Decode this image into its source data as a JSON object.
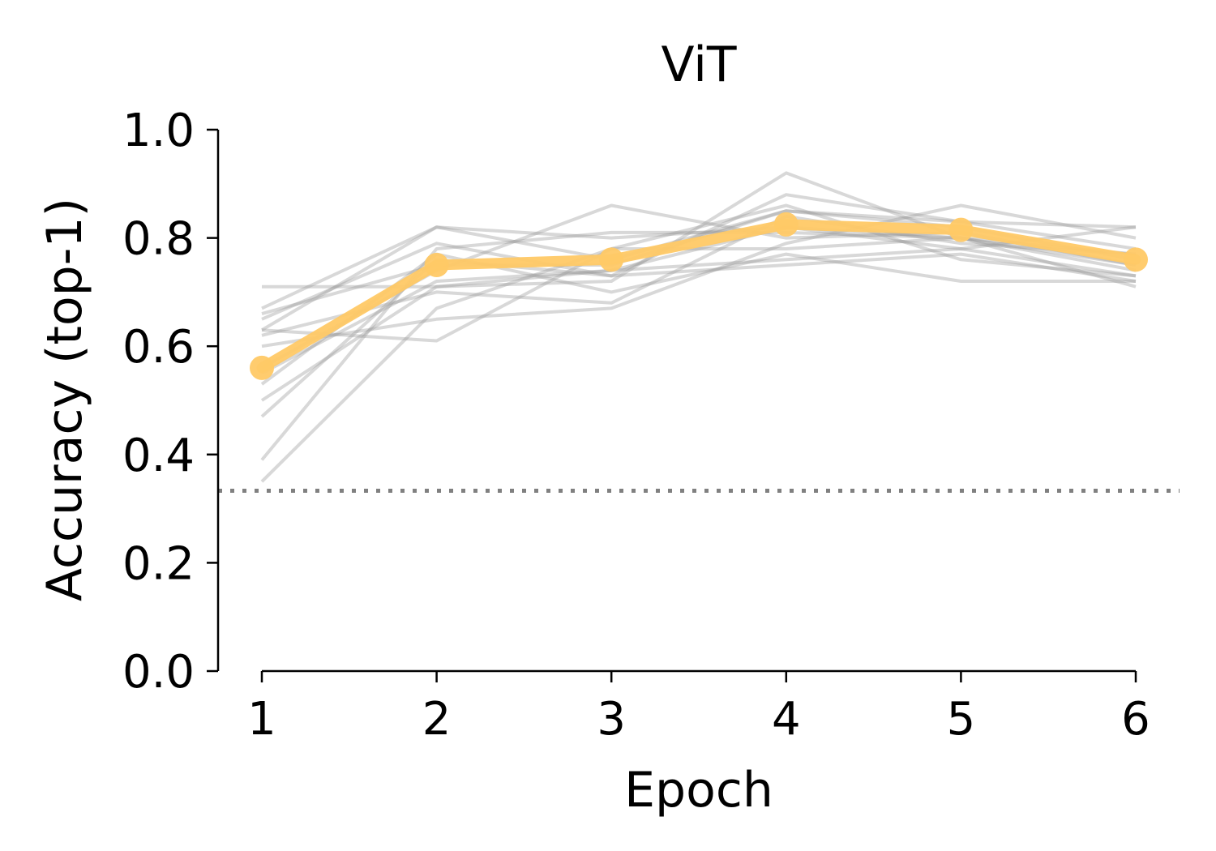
{
  "chart_data": {
    "type": "line",
    "title": "ViT",
    "xlabel": "Epoch",
    "ylabel": "Accuracy (top-1)",
    "x": [
      1,
      2,
      3,
      4,
      5,
      6
    ],
    "xlim": [
      0.75,
      6.25
    ],
    "ylim": [
      0,
      1
    ],
    "xticks": [
      "1",
      "2",
      "3",
      "4",
      "5",
      "6"
    ],
    "yticks": [
      "0.0",
      "0.2",
      "0.4",
      "0.6",
      "0.8",
      "1.0"
    ],
    "grid": false,
    "legend": "none",
    "reference_line": {
      "y": 0.333,
      "style": "dotted",
      "color": "#808080"
    },
    "highlight_series": {
      "color": "#ffc966",
      "values": [
        0.56,
        0.75,
        0.76,
        0.825,
        0.815,
        0.76
      ]
    },
    "background_series_color": "#999999",
    "background_series": [
      {
        "values": [
          0.71,
          0.71,
          0.74,
          0.76,
          0.78,
          0.73
        ]
      },
      {
        "values": [
          0.67,
          0.82,
          0.8,
          0.82,
          0.8,
          0.77
        ]
      },
      {
        "values": [
          0.66,
          0.75,
          0.75,
          0.85,
          0.83,
          0.82
        ]
      },
      {
        "values": [
          0.65,
          0.79,
          0.73,
          0.88,
          0.83,
          0.78
        ]
      },
      {
        "values": [
          0.63,
          0.82,
          0.76,
          0.85,
          0.82,
          0.76
        ]
      },
      {
        "values": [
          0.63,
          0.61,
          0.78,
          0.78,
          0.8,
          0.74
        ]
      },
      {
        "values": [
          0.6,
          0.65,
          0.67,
          0.79,
          0.86,
          0.8
        ]
      },
      {
        "values": [
          0.56,
          0.74,
          0.86,
          0.8,
          0.81,
          0.75
        ]
      },
      {
        "values": [
          0.55,
          0.72,
          0.74,
          0.82,
          0.78,
          0.82
        ]
      },
      {
        "values": [
          0.53,
          0.77,
          0.7,
          0.77,
          0.72,
          0.72
        ]
      },
      {
        "values": [
          0.5,
          0.71,
          0.72,
          0.92,
          0.8,
          0.71
        ]
      },
      {
        "values": [
          0.47,
          0.76,
          0.73,
          0.75,
          0.77,
          0.72
        ]
      },
      {
        "values": [
          0.39,
          0.78,
          0.81,
          0.81,
          0.8,
          0.75
        ]
      },
      {
        "values": [
          0.35,
          0.67,
          0.78,
          0.86,
          0.76,
          0.73
        ]
      },
      {
        "values": [
          0.62,
          0.7,
          0.68,
          0.84,
          0.79,
          0.77
        ]
      }
    ]
  }
}
